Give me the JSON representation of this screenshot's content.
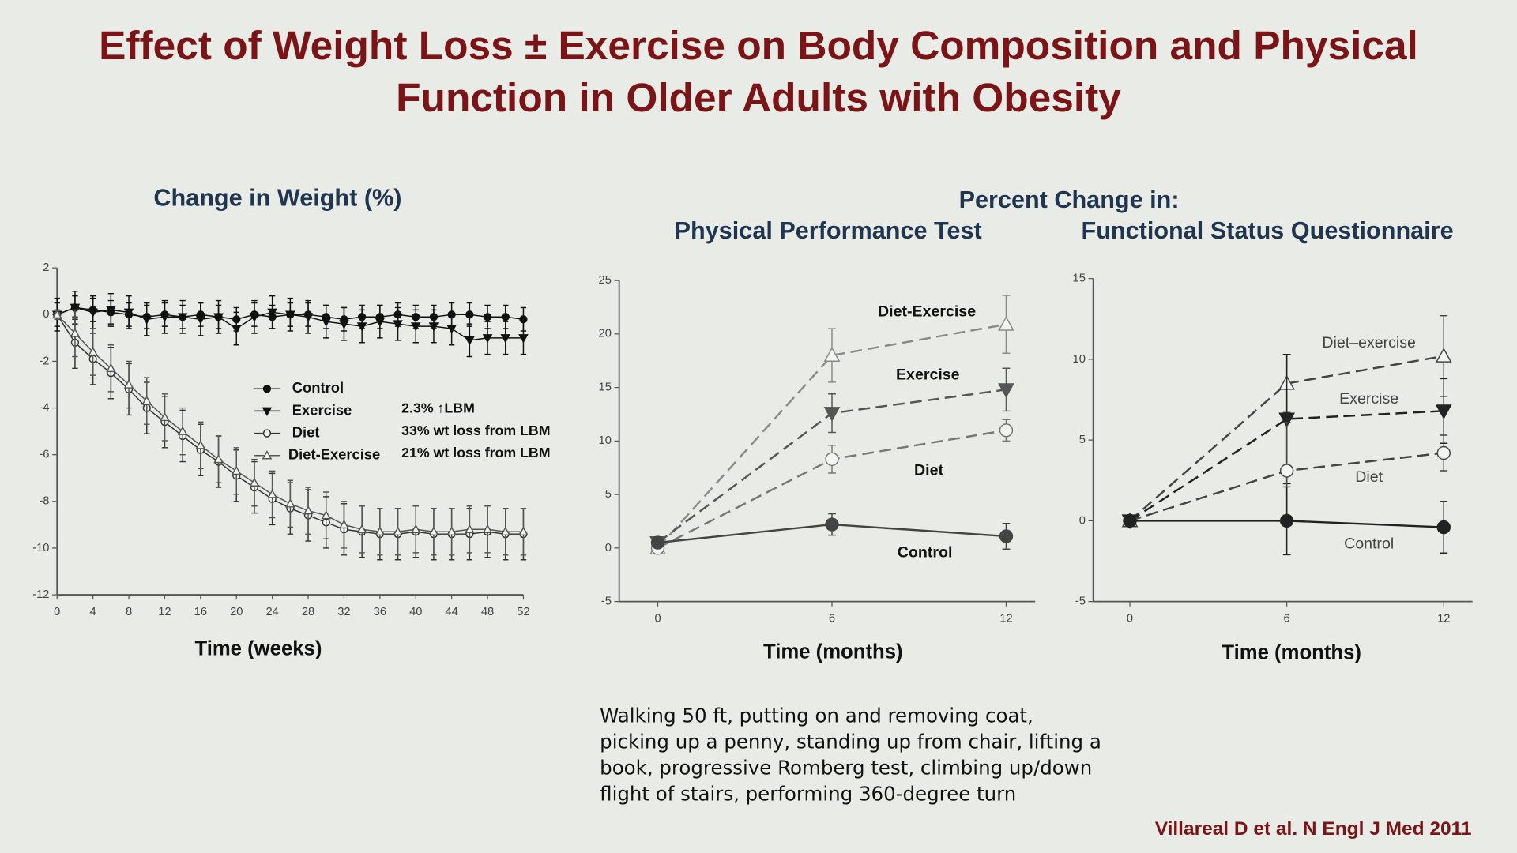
{
  "header": {
    "title": [
      "Effect of Weight Loss ± Exercise on Body Composition and Physical",
      "Function in Older Adults with Obesity"
    ]
  },
  "heading": "Percent Change in:",
  "chart_data": [
    {
      "type": "line",
      "title": "Change in Weight (%)",
      "x_label": "Time (weeks)",
      "x": [
        0,
        2,
        4,
        6,
        8,
        10,
        12,
        14,
        16,
        18,
        20,
        22,
        24,
        26,
        28,
        30,
        32,
        34,
        36,
        38,
        40,
        42,
        44,
        46,
        48,
        50,
        52
      ],
      "xlim": [
        0,
        52
      ],
      "xticks": [
        0,
        4,
        8,
        12,
        16,
        20,
        24,
        28,
        32,
        36,
        40,
        44,
        48,
        52
      ],
      "ylim": [
        -12,
        2
      ],
      "yticks": [
        -12,
        -10,
        -8,
        -6,
        -4,
        -2,
        0,
        2
      ],
      "legend": "center",
      "legend_notes": [
        "2.3% ↑LBM",
        "33% wt loss from LBM",
        "21% wt loss from LBM"
      ],
      "series": [
        {
          "name": "Control",
          "color": "#111111",
          "marker": "circle",
          "dashed": false,
          "values": [
            0,
            0.3,
            0.2,
            0.1,
            0,
            -0.1,
            0,
            -0.1,
            0,
            -0.1,
            -0.2,
            0,
            -0.1,
            0,
            0,
            -0.1,
            -0.2,
            -0.1,
            -0.1,
            0,
            -0.1,
            -0.1,
            0,
            0,
            -0.1,
            -0.1,
            -0.2
          ],
          "errors": [
            0.5,
            0.5,
            0.5,
            0.5,
            0.5,
            0.5,
            0.5,
            0.5,
            0.5,
            0.5,
            0.5,
            0.5,
            0.5,
            0.5,
            0.5,
            0.5,
            0.5,
            0.5,
            0.5,
            0.5,
            0.5,
            0.5,
            0.5,
            0.5,
            0.5,
            0.5,
            0.5
          ]
        },
        {
          "name": "Exercise",
          "color": "#111111",
          "marker": "triangle-down",
          "dashed": false,
          "values": [
            0,
            0.3,
            0.1,
            0.2,
            0.1,
            -0.2,
            -0.1,
            -0.1,
            -0.2,
            -0.1,
            -0.6,
            -0.1,
            0.1,
            0,
            -0.1,
            -0.3,
            -0.4,
            -0.5,
            -0.3,
            -0.4,
            -0.5,
            -0.5,
            -0.6,
            -1.1,
            -1.0,
            -1.0,
            -1.0
          ],
          "errors": [
            0.7,
            0.7,
            0.7,
            0.7,
            0.7,
            0.7,
            0.7,
            0.7,
            0.7,
            0.7,
            0.7,
            0.7,
            0.7,
            0.7,
            0.7,
            0.7,
            0.7,
            0.7,
            0.7,
            0.7,
            0.7,
            0.7,
            0.7,
            0.7,
            0.7,
            0.7,
            0.7
          ]
        },
        {
          "name": "Diet",
          "color": "#333333",
          "marker": "open-circle",
          "dashed": false,
          "values": [
            0,
            -1.2,
            -1.9,
            -2.5,
            -3.2,
            -4.0,
            -4.6,
            -5.2,
            -5.8,
            -6.3,
            -6.9,
            -7.4,
            -7.9,
            -8.3,
            -8.6,
            -8.9,
            -9.2,
            -9.3,
            -9.4,
            -9.4,
            -9.3,
            -9.4,
            -9.4,
            -9.4,
            -9.3,
            -9.4,
            -9.4
          ],
          "errors": [
            0.2,
            1.1,
            1.1,
            1.1,
            1.1,
            1.1,
            1.1,
            1.1,
            1.1,
            1.1,
            1.1,
            1.1,
            1.1,
            1.1,
            1.1,
            1.1,
            1.1,
            1.1,
            1.1,
            1.1,
            1.1,
            1.1,
            1.1,
            1.1,
            1.1,
            1.1,
            1.1
          ]
        },
        {
          "name": "Diet-Exercise",
          "color": "#555555",
          "marker": "open-triangle",
          "dashed": false,
          "values": [
            0,
            -0.8,
            -1.6,
            -2.3,
            -3.0,
            -3.7,
            -4.4,
            -5.0,
            -5.6,
            -6.2,
            -6.7,
            -7.2,
            -7.7,
            -8.1,
            -8.4,
            -8.6,
            -9.0,
            -9.2,
            -9.3,
            -9.3,
            -9.2,
            -9.3,
            -9.3,
            -9.2,
            -9.2,
            -9.3,
            -9.3
          ],
          "errors": [
            0.2,
            1.0,
            1.0,
            1.0,
            1.0,
            1.0,
            1.0,
            1.0,
            1.0,
            1.0,
            1.0,
            1.0,
            1.0,
            1.0,
            1.0,
            1.0,
            1.0,
            1.0,
            1.0,
            1.0,
            1.0,
            1.0,
            1.0,
            1.0,
            1.0,
            1.0,
            1.0
          ]
        }
      ]
    },
    {
      "type": "line",
      "title": "Physical Performance Test",
      "x_label": "Time (months)",
      "x": [
        0,
        6,
        12
      ],
      "xlim": [
        -1.33,
        13
      ],
      "xticks": [
        0,
        6,
        12
      ],
      "ylim": [
        -5,
        25
      ],
      "yticks": [
        -5,
        0,
        5,
        10,
        15,
        20,
        25
      ],
      "line_labels": true,
      "series": [
        {
          "name": "Diet-Exercise",
          "color": "#8a8a8a",
          "marker": "open-triangle",
          "dashed": true,
          "values": [
            0,
            18,
            20.9
          ],
          "errors": [
            0.5,
            2.5,
            2.7
          ]
        },
        {
          "name": "Exercise",
          "color": "#555555",
          "marker": "triangle-down",
          "dashed": true,
          "values": [
            0.5,
            12.6,
            14.8
          ],
          "errors": [
            0.5,
            1.8,
            2
          ]
        },
        {
          "name": "Diet",
          "color": "#777777",
          "marker": "open-circle",
          "dashed": true,
          "values": [
            0,
            8.3,
            11
          ],
          "errors": [
            0.5,
            1.3,
            1
          ]
        },
        {
          "name": "Control",
          "color": "#444444",
          "marker": "circle",
          "dashed": false,
          "values": [
            0.5,
            2.2,
            1.1
          ],
          "errors": [
            0.5,
            1,
            1.2
          ]
        }
      ]
    },
    {
      "type": "line",
      "title": "Functional Status Questionnaire",
      "x_label": "Time (months)",
      "x": [
        0,
        6,
        12
      ],
      "xlim": [
        -1.4,
        13.1
      ],
      "xticks": [
        0,
        6,
        12
      ],
      "ylim": [
        -5,
        15
      ],
      "yticks": [
        -5,
        0,
        5,
        10,
        15
      ],
      "line_labels": true,
      "series": [
        {
          "name": "Diet–exercise",
          "color": "#444444",
          "marker": "open-triangle",
          "dashed": true,
          "values": [
            0,
            8.5,
            10.2
          ],
          "errors": [
            0.3,
            1.8,
            2.5
          ]
        },
        {
          "name": "Exercise",
          "color": "#222222",
          "marker": "triangle-down",
          "dashed": true,
          "values": [
            0,
            6.3,
            6.8
          ],
          "errors": [
            0.3,
            4,
            2
          ]
        },
        {
          "name": "Diet",
          "color": "#444444",
          "marker": "open-circle",
          "dashed": true,
          "values": [
            0,
            3.1,
            4.2
          ],
          "errors": [
            0.3,
            3,
            1.1
          ]
        },
        {
          "name": "Control",
          "color": "#222222",
          "marker": "circle",
          "dashed": false,
          "values": [
            0,
            0,
            -0.4
          ],
          "errors": [
            0.3,
            2.1,
            1.6
          ]
        }
      ]
    }
  ],
  "description": [
    "Walking 50 ft, putting on and removing coat,",
    "picking up a penny, standing up from chair, lifting a",
    "book, progressive Romberg test, climbing up/down",
    "flight of stairs, performing 360-degree turn"
  ],
  "citation": "Villareal D et al. N Engl J Med 2011"
}
